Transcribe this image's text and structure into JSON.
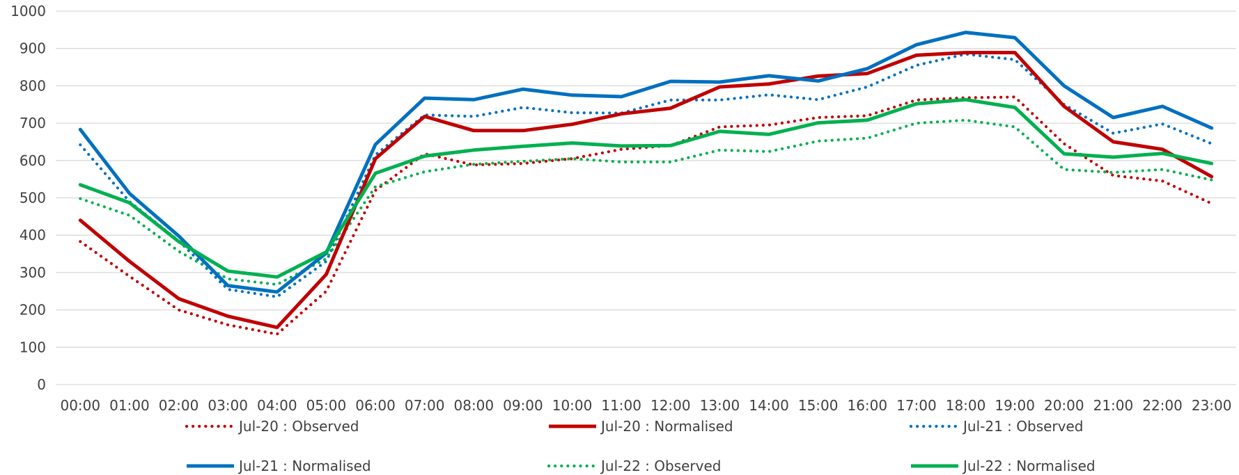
{
  "chart_data": {
    "type": "line",
    "title": "",
    "xlabel": "",
    "ylabel": "",
    "ylim": [
      0,
      1000
    ],
    "yticks": [
      0,
      100,
      200,
      300,
      400,
      500,
      600,
      700,
      800,
      900,
      1000
    ],
    "grid": true,
    "legend_position": "bottom",
    "categories": [
      "00:00",
      "01:00",
      "02:00",
      "03:00",
      "04:00",
      "05:00",
      "06:00",
      "07:00",
      "08:00",
      "09:00",
      "10:00",
      "11:00",
      "12:00",
      "13:00",
      "14:00",
      "15:00",
      "16:00",
      "17:00",
      "18:00",
      "19:00",
      "20:00",
      "21:00",
      "22:00",
      "23:00"
    ],
    "series": [
      {
        "name": "Jul-20 : Observed",
        "color": "#c00000",
        "style": "dotted",
        "values": [
          383,
          290,
          200,
          160,
          135,
          250,
          520,
          618,
          588,
          592,
          605,
          630,
          640,
          690,
          695,
          715,
          720,
          762,
          768,
          770,
          645,
          560,
          545,
          485
        ]
      },
      {
        "name": "Jul-20 : Normalised",
        "color": "#c00000",
        "style": "solid",
        "values": [
          440,
          330,
          230,
          183,
          153,
          295,
          605,
          718,
          680,
          680,
          697,
          725,
          740,
          797,
          805,
          826,
          833,
          882,
          889,
          889,
          745,
          650,
          630,
          557
        ]
      },
      {
        "name": "Jul-21 : Observed",
        "color": "#0070c0",
        "style": "dotted",
        "values": [
          642,
          490,
          385,
          255,
          235,
          330,
          615,
          722,
          718,
          742,
          728,
          727,
          762,
          762,
          776,
          763,
          797,
          855,
          885,
          870,
          750,
          673,
          698,
          645
        ]
      },
      {
        "name": "Jul-21 : Normalised",
        "color": "#0070c0",
        "style": "solid",
        "values": [
          683,
          512,
          398,
          265,
          248,
          352,
          643,
          767,
          763,
          791,
          775,
          771,
          812,
          810,
          827,
          813,
          846,
          910,
          943,
          929,
          800,
          715,
          745,
          687
        ]
      },
      {
        "name": "Jul-22 : Observed",
        "color": "#00b050",
        "style": "dotted",
        "values": [
          498,
          453,
          357,
          283,
          268,
          337,
          530,
          570,
          590,
          598,
          605,
          596,
          596,
          628,
          624,
          652,
          660,
          700,
          708,
          690,
          576,
          568,
          576,
          548
        ]
      },
      {
        "name": "Jul-22 : Normalised",
        "color": "#00b050",
        "style": "solid",
        "values": [
          535,
          487,
          383,
          304,
          288,
          355,
          566,
          612,
          628,
          638,
          647,
          639,
          640,
          678,
          670,
          701,
          708,
          752,
          763,
          742,
          618,
          609,
          619,
          592
        ]
      }
    ]
  }
}
